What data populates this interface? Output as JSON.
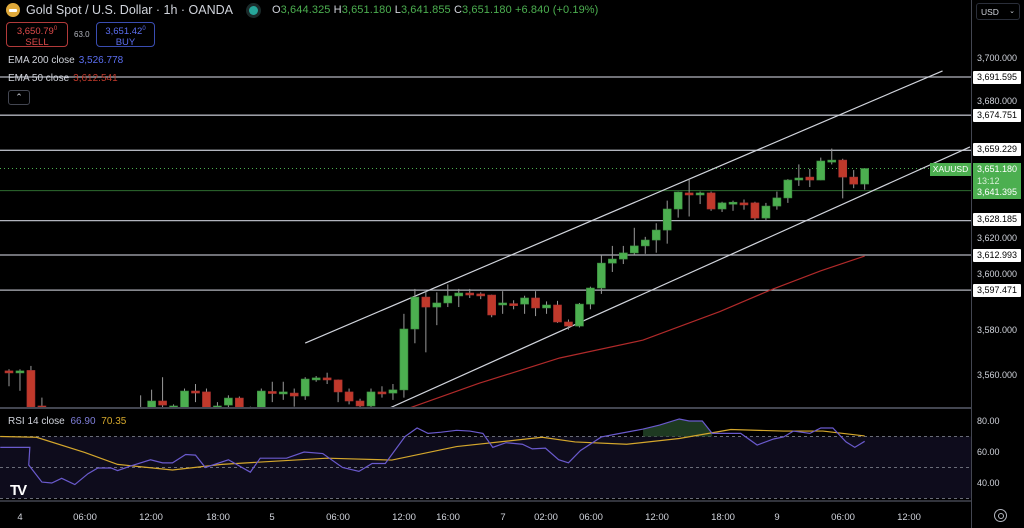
{
  "header": {
    "symbol_title": "Gold Spot / U.S. Dollar · 1h · OANDA",
    "ohlc": {
      "o_label": "O",
      "o": "3,644.325",
      "h_label": "H",
      "h": "3,651.180",
      "l_label": "L",
      "l": "3,641.855",
      "c_label": "C",
      "c": "3,651.180",
      "change": "+6.840 (+0.19%)"
    },
    "market_status": "open"
  },
  "trade": {
    "sell_price": "3,650.79",
    "sell_sup": "0",
    "sell_label": "SELL",
    "spread": "63.0",
    "buy_price": "3,651.42",
    "buy_sup": "0",
    "buy_label": "BUY"
  },
  "indicators": {
    "ema200": {
      "label": "EMA 200 close",
      "value": "3,526.778",
      "color": "#5b6ef0"
    },
    "ema50": {
      "label": "EMA 50 close",
      "value": "3,612.541",
      "color": "#c0392b"
    },
    "rsi": {
      "label": "RSI 14 close",
      "value": "66.90",
      "ma_value": "70.35",
      "color": "#7e57c2",
      "ma_color": "#d4a72c"
    }
  },
  "price_axis": {
    "currency": "USD",
    "ticks": [
      "3,700.000",
      "3,680.000",
      "3,620.000",
      "3,600.000",
      "3,580.000",
      "3,560.000"
    ],
    "levels": [
      "3,691.595",
      "3,674.751",
      "3,659.229",
      "3,628.185",
      "3,612.993",
      "3,597.471"
    ],
    "symbol_tag": "XAUUSD",
    "current_price": "3,651.180",
    "countdown": "13:12",
    "green_level": "3,641.395"
  },
  "rsi_axis": {
    "ticks": [
      "80.00",
      "60.00",
      "40.00"
    ]
  },
  "time_axis": {
    "labels": [
      "4",
      "06:00",
      "12:00",
      "18:00",
      "5",
      "06:00",
      "12:00",
      "16:00",
      "7",
      "02:00",
      "06:00",
      "12:00",
      "18:00",
      "9",
      "06:00",
      "12:00"
    ]
  },
  "colors": {
    "up": "#4caf50",
    "down": "#c0392b",
    "background": "#000000"
  },
  "chart_data": {
    "type": "candlestick",
    "timeframe": "1h",
    "ylim": [
      3545,
      3705
    ],
    "candles_obhlc_by_bar": [
      [
        0,
        3561.8,
        3562.5,
        3555,
        3560.9
      ],
      [
        1,
        3560.9,
        3562.5,
        3553,
        3561.8
      ],
      [
        2,
        3562,
        3564,
        3544,
        3545.8
      ],
      [
        3,
        3546.3,
        3550,
        3543,
        3544.5
      ],
      [
        12,
        3544,
        3551,
        3543,
        3545.4
      ],
      [
        13,
        3545.4,
        3553.5,
        3544,
        3548.5
      ],
      [
        14,
        3548.5,
        3559,
        3545,
        3546.7
      ],
      [
        15,
        3546,
        3547,
        3545,
        3546.3
      ],
      [
        16,
        3545.4,
        3554,
        3544,
        3552.9
      ],
      [
        17,
        3552.9,
        3556,
        3548,
        3552.5
      ],
      [
        18,
        3552.5,
        3554,
        3543,
        3544.5
      ],
      [
        19,
        3545.4,
        3548,
        3544,
        3546.3
      ],
      [
        20,
        3546.7,
        3551,
        3545,
        3549.8
      ],
      [
        21,
        3549.8,
        3550.5,
        3544,
        3545.8
      ],
      [
        22,
        3545.6,
        3546,
        3544,
        3545.4
      ],
      [
        23,
        3545.4,
        3554,
        3544,
        3552.9
      ],
      [
        24,
        3552.7,
        3557,
        3548,
        3552.5
      ],
      [
        25,
        3552.4,
        3557,
        3549,
        3552.5
      ],
      [
        26,
        3552,
        3554,
        3546,
        3550.7
      ],
      [
        27,
        3550.7,
        3559,
        3549,
        3558.2
      ],
      [
        28,
        3558.5,
        3559.5,
        3557,
        3558.7
      ],
      [
        29,
        3558.7,
        3561,
        3556,
        3557.8
      ],
      [
        30,
        3557.8,
        3558,
        3548,
        3552.5
      ],
      [
        31,
        3552.5,
        3554,
        3547,
        3548.5
      ],
      [
        32,
        3548.5,
        3549.5,
        3545,
        3546.3
      ],
      [
        33,
        3546.3,
        3554,
        3545,
        3552.5
      ],
      [
        34,
        3552.5,
        3555,
        3550,
        3552.0
      ],
      [
        35,
        3552,
        3556,
        3549,
        3553.4
      ],
      [
        36,
        3553.4,
        3587,
        3550,
        3580.3
      ],
      [
        37,
        3580.3,
        3598,
        3574,
        3594.4
      ],
      [
        38,
        3594.4,
        3597,
        3570,
        3590
      ],
      [
        39,
        3590,
        3596.5,
        3582,
        3591.8
      ],
      [
        40,
        3591.8,
        3600,
        3590,
        3594.9
      ],
      [
        41,
        3594.9,
        3598,
        3590,
        3596.2
      ],
      [
        42,
        3596.2,
        3598,
        3594,
        3595.8
      ],
      [
        43,
        3595.8,
        3596.5,
        3593.5,
        3595.3
      ],
      [
        44,
        3595.3,
        3595.5,
        3585.5,
        3586.5
      ],
      [
        45,
        3591,
        3597,
        3587,
        3591.8
      ],
      [
        46,
        3591.5,
        3593,
        3589,
        3590.9
      ],
      [
        47,
        3591.3,
        3595,
        3587,
        3594
      ],
      [
        48,
        3594,
        3597,
        3586,
        3589.6
      ],
      [
        49,
        3589.6,
        3592.5,
        3587,
        3590.9
      ],
      [
        50,
        3590.9,
        3592.7,
        3583,
        3583.4
      ],
      [
        51,
        3583.4,
        3584.5,
        3580,
        3581.6
      ],
      [
        52,
        3581.6,
        3591.8,
        3581,
        3591.3
      ],
      [
        53,
        3591.3,
        3599,
        3589,
        3598.4
      ],
      [
        54,
        3598.4,
        3613,
        3595.8,
        3609.4
      ],
      [
        55,
        3609.4,
        3617,
        3605.5,
        3611.2
      ],
      [
        56,
        3611.2,
        3617,
        3609,
        3613.9
      ],
      [
        57,
        3613.9,
        3625,
        3613,
        3617
      ],
      [
        58,
        3617,
        3621,
        3613.5,
        3619.6
      ],
      [
        59,
        3619.6,
        3627,
        3614,
        3624
      ],
      [
        60,
        3624,
        3637,
        3618,
        3633.3
      ],
      [
        61,
        3633.3,
        3641,
        3629.5,
        3640.8
      ],
      [
        62,
        3640.4,
        3646.5,
        3630,
        3639.5
      ],
      [
        63,
        3639.5,
        3641,
        3635.5,
        3640.4
      ],
      [
        64,
        3640.4,
        3641,
        3632.5,
        3633.3
      ],
      [
        65,
        3633.3,
        3636.5,
        3632,
        3636
      ],
      [
        66,
        3636,
        3637,
        3632.5,
        3636.3
      ],
      [
        67,
        3636,
        3637.5,
        3633,
        3635.1
      ],
      [
        68,
        3636,
        3636.5,
        3628.5,
        3629.3
      ],
      [
        69,
        3629.3,
        3636,
        3628.5,
        3634.6
      ],
      [
        70,
        3634.6,
        3641,
        3633,
        3638.2
      ],
      [
        71,
        3638.2,
        3646.5,
        3636,
        3646.1
      ],
      [
        72,
        3646.1,
        3653,
        3643.5,
        3647
      ],
      [
        73,
        3647.4,
        3651,
        3643,
        3646.1
      ],
      [
        74,
        3646.1,
        3656,
        3646,
        3654.5
      ],
      [
        75,
        3654.7,
        3660,
        3653,
        3654.9
      ],
      [
        76,
        3654.9,
        3655.5,
        3638,
        3647.4
      ],
      [
        77,
        3647.4,
        3650.5,
        3642.5,
        3644.3
      ],
      [
        78,
        3644.325,
        3651.18,
        3641.855,
        3651.18
      ]
    ],
    "horizontal_levels": [
      3691.595,
      3674.751,
      3659.229,
      3628.185,
      3612.993,
      3597.471
    ],
    "green_level": 3641.395,
    "current_price": 3651.18,
    "channel": {
      "upper": [
        [
          27,
          3574.1
        ],
        [
          85.1,
          3694.3
        ]
      ],
      "lower": [
        [
          34.7,
          3545.4
        ],
        [
          87.6,
          3660.7
        ]
      ]
    },
    "ema50": [
      [
        36.5,
        3545.4
      ],
      [
        42.9,
        3556.4
      ],
      [
        50.2,
        3567.5
      ],
      [
        57.8,
        3575.4
      ],
      [
        64.8,
        3588
      ],
      [
        69.4,
        3597.5
      ],
      [
        74,
        3606
      ],
      [
        78,
        3612.5
      ]
    ],
    "rsi": {
      "ylim": [
        25,
        85
      ],
      "bands": [
        70,
        50,
        30
      ],
      "values": [
        [
          -0.8,
          63
        ],
        [
          1.9,
          63
        ],
        [
          1.8,
          51.6
        ],
        [
          3,
          40.6
        ],
        [
          3.9,
          40
        ],
        [
          4.8,
          43
        ],
        [
          6,
          39
        ],
        [
          7.2,
          46
        ],
        [
          8.1,
          49.7
        ],
        [
          9.3,
          49.7
        ],
        [
          9.9,
          48
        ],
        [
          11.1,
          51
        ],
        [
          12.9,
          55
        ],
        [
          14,
          53
        ],
        [
          14.9,
          53
        ],
        [
          16.1,
          58.4
        ],
        [
          17,
          58
        ],
        [
          17.9,
          50
        ],
        [
          20,
          55
        ],
        [
          22,
          47
        ],
        [
          22.9,
          56
        ],
        [
          25.3,
          56
        ],
        [
          26.9,
          60
        ],
        [
          28.6,
          59
        ],
        [
          30.4,
          50
        ],
        [
          31.9,
          47.5
        ],
        [
          33.1,
          52.6
        ],
        [
          34.3,
          52.6
        ],
        [
          36.1,
          70
        ],
        [
          37.2,
          75.5
        ],
        [
          38.2,
          72
        ],
        [
          39.4,
          72.8
        ],
        [
          40.8,
          74
        ],
        [
          42,
          73.5
        ],
        [
          43.2,
          72
        ],
        [
          44.1,
          63
        ],
        [
          45.3,
          66
        ],
        [
          46.8,
          65
        ],
        [
          47.7,
          62
        ],
        [
          48.9,
          62.5
        ],
        [
          50.1,
          55
        ],
        [
          51,
          53
        ],
        [
          52.1,
          61
        ],
        [
          54,
          69.7
        ],
        [
          55.4,
          71.6
        ],
        [
          57.8,
          74.8
        ],
        [
          59.3,
          77.4
        ],
        [
          61.1,
          81.3
        ],
        [
          62,
          80
        ],
        [
          63.2,
          80
        ],
        [
          64.1,
          72
        ],
        [
          66.7,
          72
        ],
        [
          68.2,
          64.5
        ],
        [
          69.7,
          68.4
        ],
        [
          70.6,
          69.7
        ],
        [
          71.5,
          73.5
        ],
        [
          73,
          72
        ],
        [
          74,
          75.5
        ],
        [
          75.1,
          75.5
        ],
        [
          76.3,
          66.5
        ],
        [
          77.1,
          63
        ],
        [
          78,
          66.9
        ]
      ],
      "ma": [
        [
          -0.8,
          70
        ],
        [
          2.5,
          69.5
        ],
        [
          6.9,
          59.7
        ],
        [
          9.9,
          52
        ],
        [
          14.9,
          48.4
        ],
        [
          19.4,
          52
        ],
        [
          22.9,
          53.5
        ],
        [
          29,
          56
        ],
        [
          34.9,
          54.8
        ],
        [
          40.8,
          63.5
        ],
        [
          48.6,
          69.5
        ],
        [
          51.6,
          66.5
        ],
        [
          56.3,
          65
        ],
        [
          61.1,
          68.7
        ],
        [
          65.8,
          74.5
        ],
        [
          70.6,
          73.5
        ],
        [
          74.2,
          73.5
        ],
        [
          78,
          70.35
        ]
      ]
    }
  }
}
